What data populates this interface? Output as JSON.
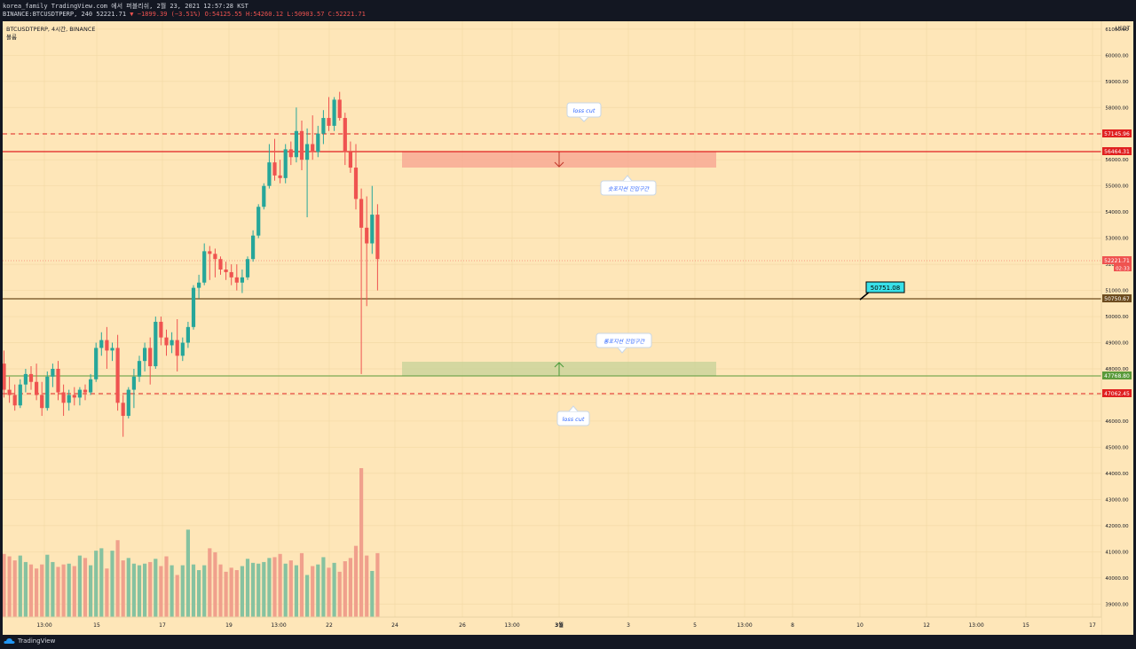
{
  "header": {
    "line1": "korea_family TradingView.com 에서 퍼블리쉬, 2월 23, 2021 12:57:28 KST",
    "line2_symbol": "BINANCE:BTCUSDTPERP, 240 52221.71",
    "line2_change": "▼ −1899.39 (−3.51%)",
    "line2_ohlc": "O:54125.55 H:54260.12 L:50903.57 C:52221.71"
  },
  "legend": {
    "title": "BTCUSDTPERP, 4시간, BINANCE",
    "volume": "볼륨"
  },
  "axis": {
    "currency": "USDT",
    "y_ticks": [
      "61000.00",
      "60000.00",
      "59000.00",
      "58000.00",
      "57000.00",
      "56000.00",
      "55000.00",
      "54000.00",
      "53000.00",
      "52000.00",
      "51000.00",
      "50000.00",
      "49000.00",
      "48000.00",
      "47000.00",
      "46000.00",
      "45000.00",
      "44000.00",
      "43000.00",
      "42000.00",
      "41000.00",
      "40000.00",
      "39000.00"
    ],
    "x_ticks": [
      "13:00",
      "15",
      "17",
      "19",
      "13:00",
      "22",
      "24",
      "26",
      "13:00",
      "3월",
      "3",
      "5",
      "13:00",
      "8",
      "10",
      "12",
      "13:00",
      "15",
      "17"
    ]
  },
  "price_tags": {
    "loss_top": "57145.96",
    "red_line": "56464.31",
    "last_price": "52221.71",
    "countdown": "02:33",
    "brown_line": "50750.67",
    "green_line": "47768.80",
    "loss_bottom": "47062.45"
  },
  "annotations": {
    "loss_cut_top": "loss cut",
    "short_zone": "숏포지션 진입구간",
    "callout": "50751.08",
    "long_zone": "롱포지션 진입구간",
    "loss_cut_bottom": "loss cut"
  },
  "colors": {
    "background": "#fee6b8",
    "up": "#26a69a",
    "down": "#ef5350",
    "red_line": "#e02020",
    "brown_line": "#6d4c1f",
    "green_line": "#5a9a3a",
    "callout": "#39e1e9"
  },
  "footer": {
    "brand": "TradingView"
  },
  "chart_data": {
    "type": "candlestick",
    "symbol": "BINANCE:BTCUSDTPERP",
    "interval": "240",
    "ylim": [
      38500,
      61300
    ],
    "candles": [
      [
        48200,
        48700,
        46900,
        47200
      ],
      [
        47200,
        47700,
        46700,
        47000
      ],
      [
        47000,
        47400,
        46400,
        46600
      ],
      [
        46600,
        47600,
        46500,
        47400
      ],
      [
        47400,
        48000,
        47100,
        47800
      ],
      [
        47800,
        48100,
        47200,
        47500
      ],
      [
        47500,
        48200,
        46800,
        47000
      ],
      [
        47000,
        47500,
        46200,
        46500
      ],
      [
        46500,
        47900,
        46400,
        47700
      ],
      [
        47700,
        48200,
        47300,
        48000
      ],
      [
        48000,
        48300,
        46800,
        47100
      ],
      [
        47100,
        47400,
        46200,
        46700
      ],
      [
        46700,
        47200,
        46400,
        47000
      ],
      [
        47000,
        47300,
        46600,
        46900
      ],
      [
        46900,
        47300,
        46600,
        47200
      ],
      [
        47200,
        47400,
        46800,
        47100
      ],
      [
        47100,
        47800,
        47000,
        47600
      ],
      [
        47600,
        49000,
        47500,
        48800
      ],
      [
        48800,
        49400,
        48500,
        49100
      ],
      [
        49100,
        49600,
        48000,
        48700
      ],
      [
        48700,
        49000,
        48300,
        48800
      ],
      [
        48800,
        49300,
        46400,
        46700
      ],
      [
        46700,
        47000,
        45400,
        46200
      ],
      [
        46200,
        47300,
        46100,
        47200
      ],
      [
        47200,
        48000,
        46500,
        47700
      ],
      [
        47700,
        48500,
        47500,
        48300
      ],
      [
        48300,
        49000,
        47900,
        48800
      ],
      [
        48800,
        49200,
        47400,
        48100
      ],
      [
        48100,
        50000,
        48000,
        49800
      ],
      [
        49800,
        50000,
        48900,
        49200
      ],
      [
        49200,
        49500,
        48500,
        48900
      ],
      [
        48900,
        49400,
        48600,
        49100
      ],
      [
        49100,
        49900,
        47900,
        48500
      ],
      [
        48500,
        49200,
        48300,
        49000
      ],
      [
        49000,
        49800,
        48800,
        49600
      ],
      [
        49600,
        51200,
        49500,
        51100
      ],
      [
        51100,
        51600,
        50700,
        51300
      ],
      [
        51300,
        52800,
        51200,
        52500
      ],
      [
        52500,
        52700,
        51400,
        52400
      ],
      [
        52400,
        52600,
        51500,
        52200
      ],
      [
        52200,
        52300,
        51600,
        51800
      ],
      [
        51800,
        52100,
        51400,
        51700
      ],
      [
        51700,
        52000,
        51200,
        51500
      ],
      [
        51500,
        52000,
        51000,
        51300
      ],
      [
        51300,
        51800,
        50900,
        51500
      ],
      [
        51500,
        52300,
        51400,
        52200
      ],
      [
        52200,
        53300,
        52100,
        53100
      ],
      [
        53100,
        54300,
        53000,
        54200
      ],
      [
        54200,
        55100,
        54100,
        55000
      ],
      [
        55000,
        56600,
        54900,
        55900
      ],
      [
        55900,
        56800,
        55200,
        55400
      ],
      [
        55400,
        56000,
        55100,
        55300
      ],
      [
        55300,
        56600,
        55100,
        56400
      ],
      [
        56400,
        56700,
        55800,
        56100
      ],
      [
        56100,
        58000,
        55900,
        57100
      ],
      [
        57100,
        57500,
        55600,
        56000
      ],
      [
        56000,
        57200,
        53800,
        56600
      ],
      [
        56600,
        57700,
        56000,
        56300
      ],
      [
        56300,
        57300,
        56100,
        57000
      ],
      [
        57000,
        57900,
        56600,
        57600
      ],
      [
        57600,
        58400,
        57100,
        57300
      ],
      [
        57300,
        58400,
        57100,
        58300
      ],
      [
        58300,
        58600,
        57500,
        57600
      ],
      [
        57600,
        57800,
        55800,
        56300
      ],
      [
        56300,
        56700,
        55500,
        55700
      ],
      [
        55700,
        56600,
        54100,
        54500
      ],
      [
        54500,
        54900,
        47800,
        53400
      ],
      [
        53400,
        54600,
        50400,
        52800
      ],
      [
        52800,
        55000,
        52400,
        53900
      ],
      [
        53900,
        54300,
        51000,
        52200
      ]
    ],
    "volume": [
      1560,
      1500,
      1400,
      1520,
      1360,
      1300,
      1200,
      1300,
      1540,
      1360,
      1240,
      1300,
      1320,
      1260,
      1520,
      1460,
      1280,
      1640,
      1700,
      1200,
      1640,
      1900,
      1400,
      1460,
      1320,
      1280,
      1320,
      1360,
      1440,
      1260,
      1500,
      1280,
      1040,
      1280,
      2160,
      1300,
      1160,
      1280,
      1700,
      1600,
      1300,
      1120,
      1220,
      1160,
      1260,
      1440,
      1340,
      1320,
      1360,
      1460,
      1480,
      1560,
      1320,
      1400,
      1280,
      1580,
      1040,
      1260,
      1300,
      1480,
      1220,
      1340,
      1120,
      1380,
      1460,
      1760,
      3680,
      1520,
      1140,
      1580
    ]
  }
}
